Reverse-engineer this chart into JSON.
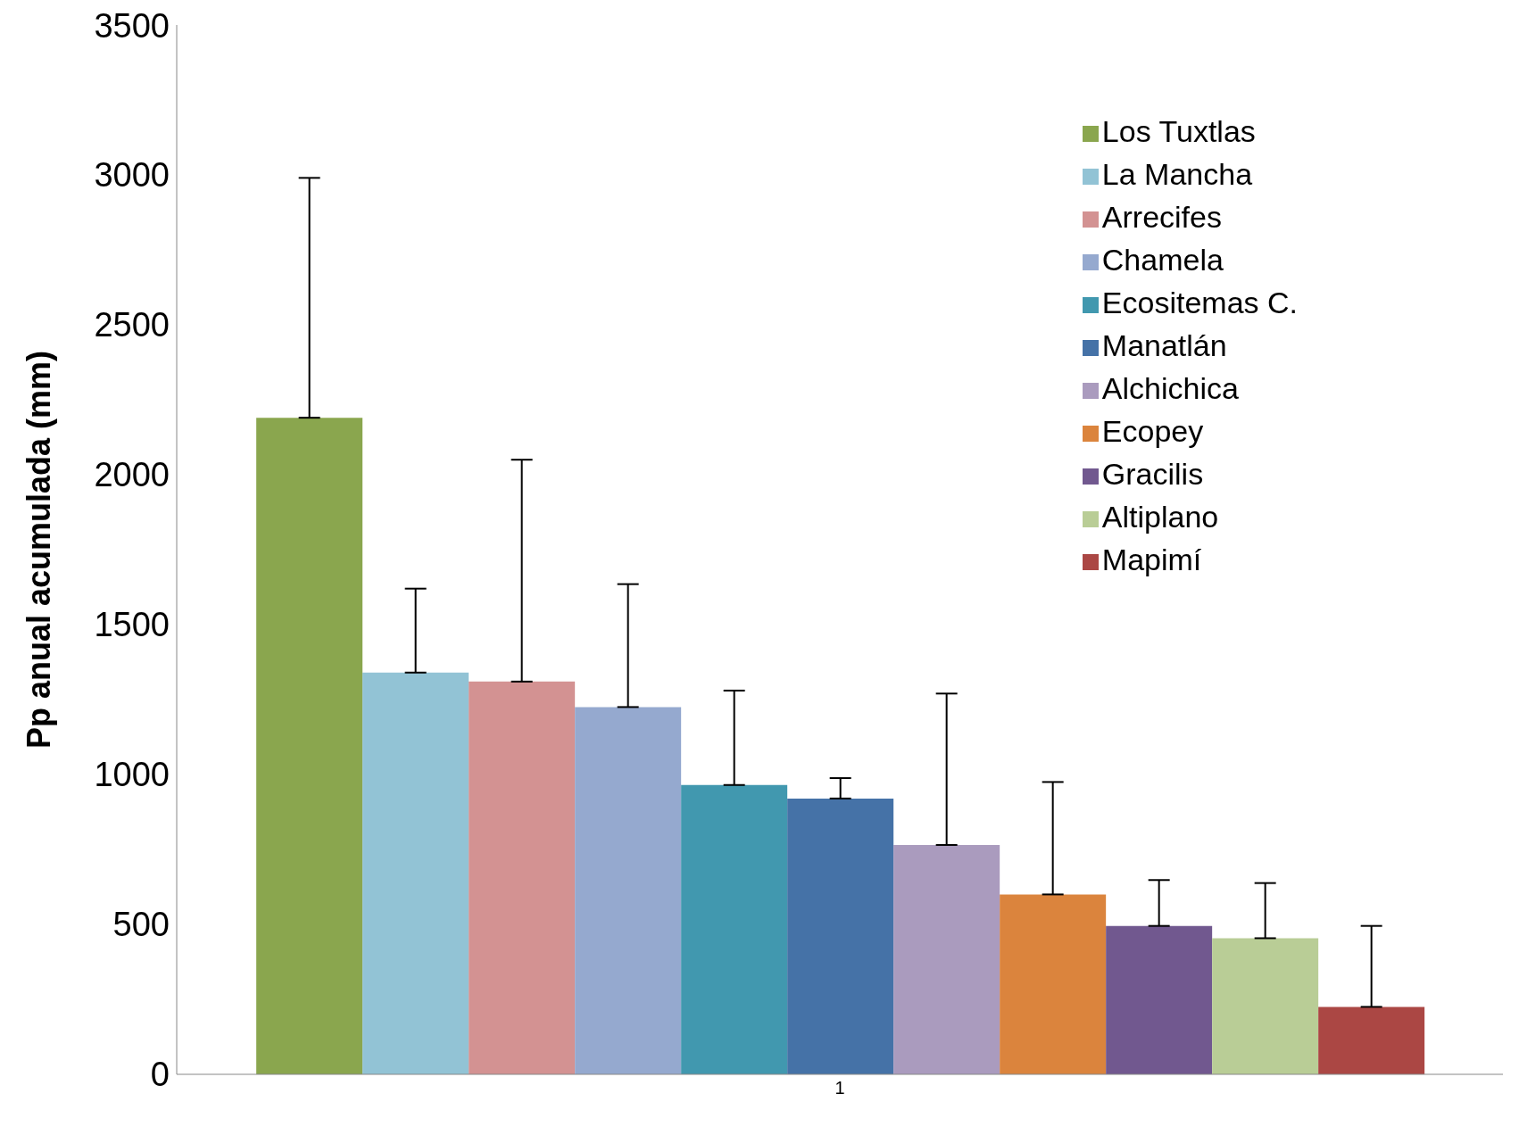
{
  "chart_data": {
    "type": "bar",
    "ylabel": "Pp anual acumulada (mm)",
    "categories": [
      "1"
    ],
    "ylim": [
      0,
      3500
    ],
    "yticks": [
      0,
      500,
      1000,
      1500,
      2000,
      2500,
      3000,
      3500
    ],
    "grid": false,
    "legend": "top right",
    "series": [
      {
        "name": "Los Tuxtlas",
        "color": "#8aa64e",
        "values": [
          2190
        ],
        "errors": [
          [
            2190,
            2990
          ]
        ]
      },
      {
        "name": "La Mancha",
        "color": "#92c3d5",
        "values": [
          1340
        ],
        "errors": [
          [
            1340,
            1620
          ]
        ]
      },
      {
        "name": "Arrecifes",
        "color": "#d39292",
        "values": [
          1310
        ],
        "errors": [
          [
            1310,
            2050
          ]
        ]
      },
      {
        "name": "Chamela",
        "color": "#95a9cf",
        "values": [
          1225
        ],
        "errors": [
          [
            1225,
            1635
          ]
        ]
      },
      {
        "name": "Ecositemas C.",
        "color": "#4198af",
        "values": [
          965
        ],
        "errors": [
          [
            965,
            1280
          ]
        ]
      },
      {
        "name": "Manatlán",
        "color": "#4572a7",
        "values": [
          920
        ],
        "errors": [
          [
            920,
            988
          ]
        ]
      },
      {
        "name": "Alchichica",
        "color": "#aa9bbe",
        "values": [
          765
        ],
        "errors": [
          [
            765,
            1270
          ]
        ]
      },
      {
        "name": "Ecopey",
        "color": "#db843d",
        "values": [
          600
        ],
        "errors": [
          [
            600,
            975
          ]
        ]
      },
      {
        "name": "Gracilis",
        "color": "#71588f",
        "values": [
          495
        ],
        "errors": [
          [
            495,
            648
          ]
        ]
      },
      {
        "name": "Altiplano",
        "color": "#b9cd96",
        "values": [
          454
        ],
        "errors": [
          [
            454,
            638
          ]
        ]
      },
      {
        "name": "Mapimí",
        "color": "#ab4744",
        "values": [
          225
        ],
        "errors": [
          [
            225,
            495
          ]
        ]
      }
    ]
  }
}
